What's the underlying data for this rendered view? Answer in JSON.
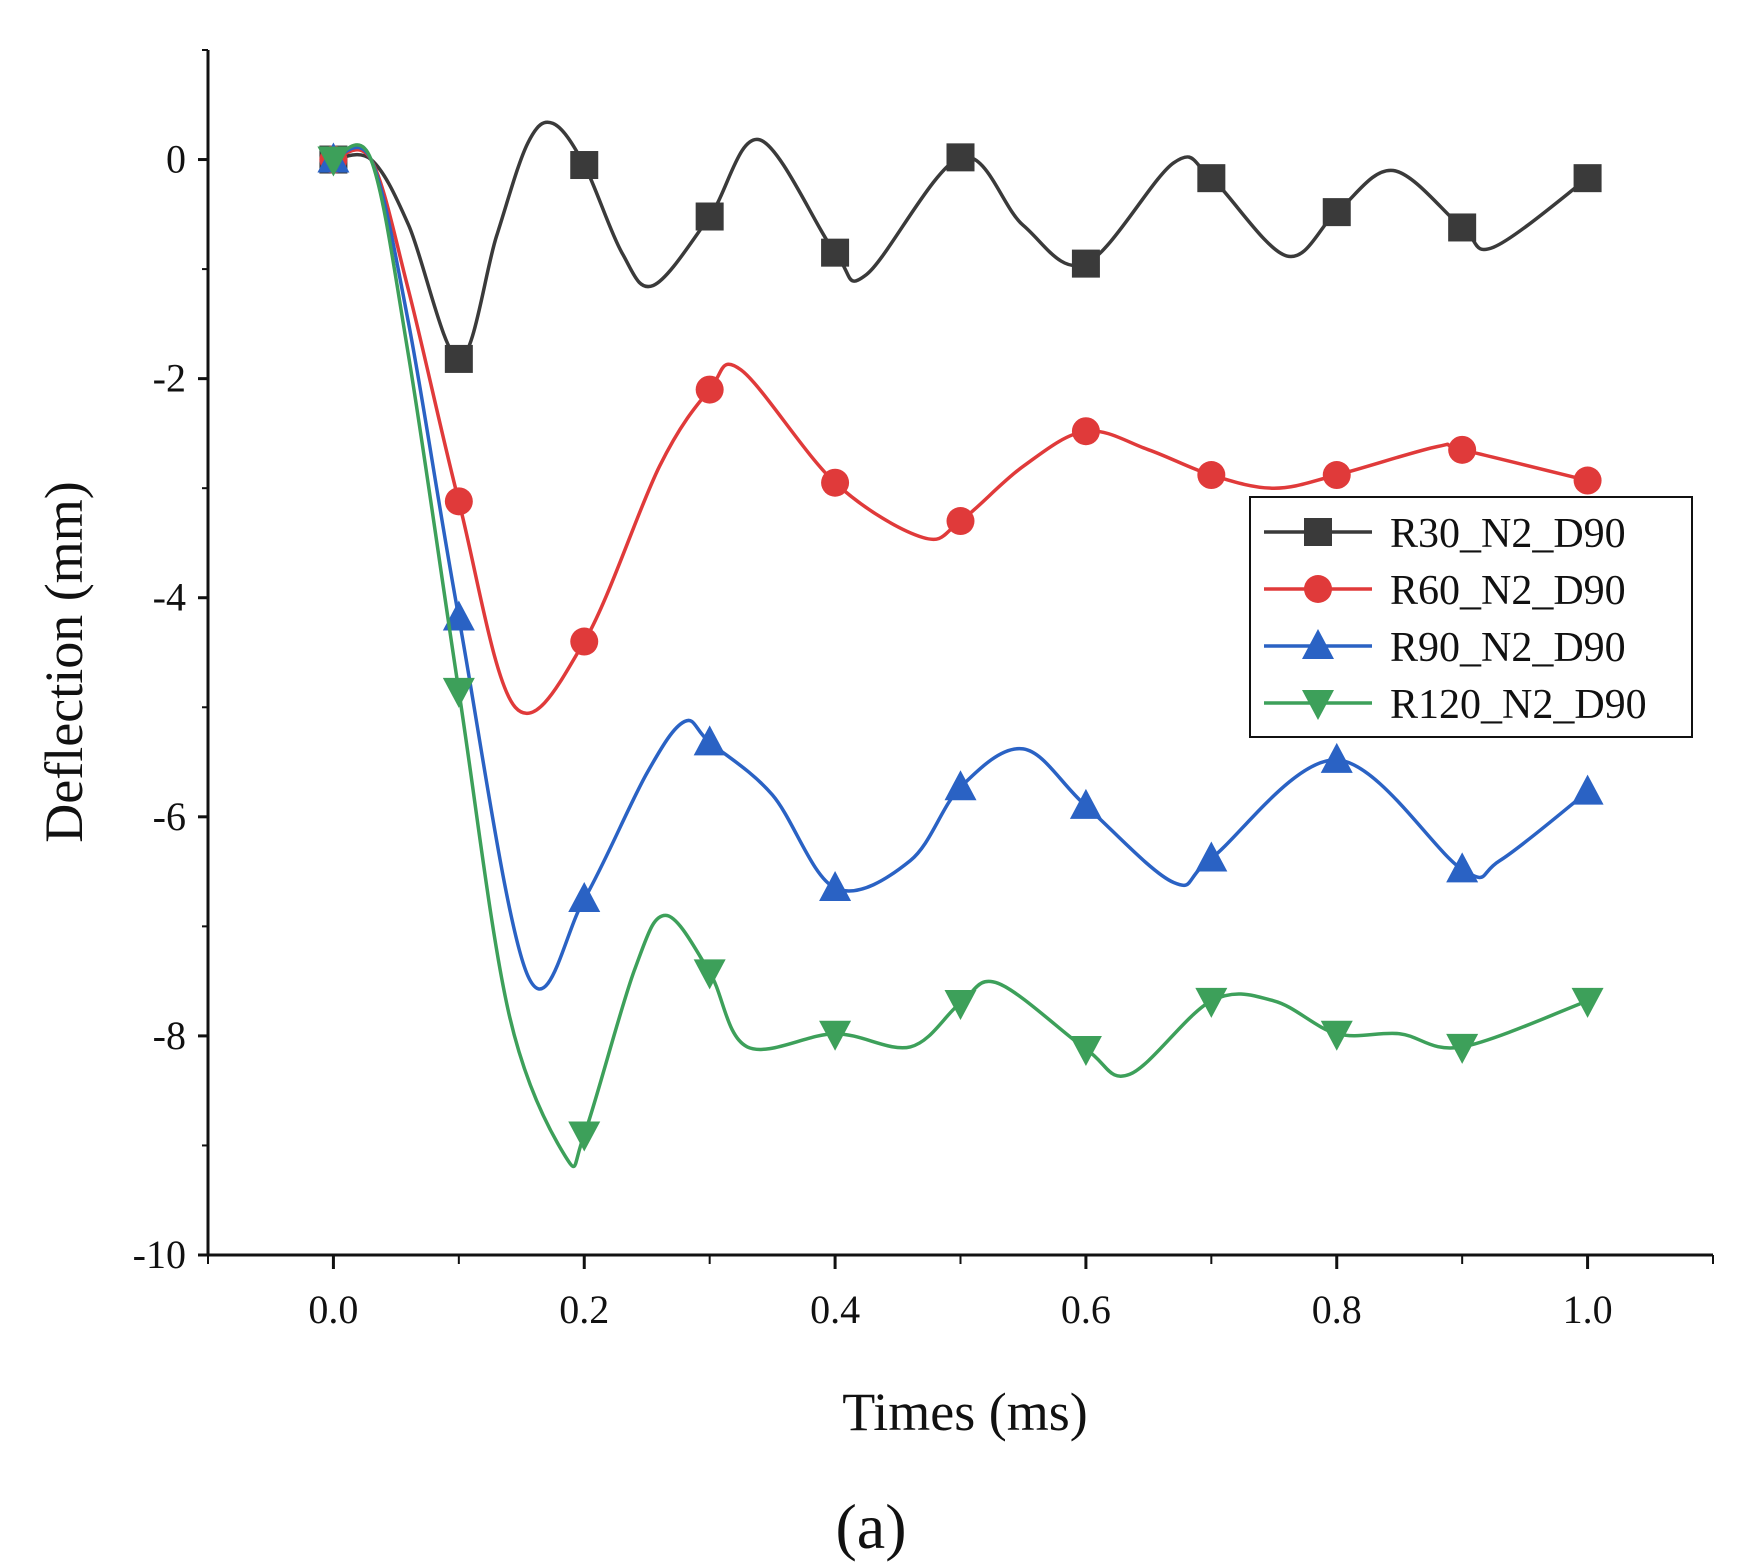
{
  "chart_data": {
    "type": "line",
    "title": "",
    "xlabel": "Times (ms)",
    "ylabel": "Deflection (mm)",
    "xlim": [
      -0.1,
      1.1
    ],
    "ylim": [
      -10,
      1
    ],
    "xticks": [
      0.0,
      0.2,
      0.4,
      0.6,
      0.8,
      1.0
    ],
    "xtick_labels": [
      "0.0",
      "0.2",
      "0.4",
      "0.6",
      "0.8",
      "1.0"
    ],
    "yticks": [
      0,
      -2,
      -4,
      -6,
      -8,
      -10
    ],
    "ytick_labels": [
      "0",
      "-2",
      "-4",
      "-6",
      "-8",
      "-10"
    ],
    "grid": false,
    "legend_position": "right",
    "panel_label": "(a)",
    "series": [
      {
        "name": "R30_N2_D90",
        "color": "#3a3a3a",
        "marker": "square",
        "x": [
          0.0,
          0.1,
          0.2,
          0.3,
          0.4,
          0.5,
          0.6,
          0.7,
          0.8,
          0.9,
          1.0
        ],
        "values": [
          0.0,
          -1.82,
          -0.05,
          -0.52,
          -0.85,
          0.02,
          -0.95,
          -0.17,
          -0.48,
          -0.62,
          -0.17
        ],
        "curve": [
          [
            0,
            0
          ],
          [
            0.03,
            0
          ],
          [
            0.06,
            -0.6
          ],
          [
            0.1,
            -1.82
          ],
          [
            0.13,
            -0.7
          ],
          [
            0.155,
            0.15
          ],
          [
            0.175,
            0.33
          ],
          [
            0.2,
            -0.05
          ],
          [
            0.23,
            -0.85
          ],
          [
            0.255,
            -1.15
          ],
          [
            0.3,
            -0.52
          ],
          [
            0.34,
            0.18
          ],
          [
            0.4,
            -0.85
          ],
          [
            0.425,
            -1.05
          ],
          [
            0.5,
            0.02
          ],
          [
            0.55,
            -0.6
          ],
          [
            0.6,
            -0.95
          ],
          [
            0.67,
            -0.03
          ],
          [
            0.7,
            -0.17
          ],
          [
            0.76,
            -0.88
          ],
          [
            0.8,
            -0.48
          ],
          [
            0.845,
            -0.1
          ],
          [
            0.9,
            -0.62
          ],
          [
            0.925,
            -0.8
          ],
          [
            1.0,
            -0.17
          ]
        ]
      },
      {
        "name": "R60_N2_D90",
        "color": "#e03a3a",
        "marker": "circle",
        "x": [
          0.0,
          0.1,
          0.2,
          0.3,
          0.4,
          0.5,
          0.6,
          0.7,
          0.8,
          0.9,
          1.0
        ],
        "values": [
          0.0,
          -3.12,
          -4.4,
          -2.1,
          -2.95,
          -3.3,
          -2.48,
          -2.88,
          -2.88,
          -2.65,
          -2.93
        ],
        "curve": [
          [
            0,
            0
          ],
          [
            0.03,
            0
          ],
          [
            0.06,
            -1.2
          ],
          [
            0.1,
            -3.12
          ],
          [
            0.145,
            -5.0
          ],
          [
            0.2,
            -4.4
          ],
          [
            0.26,
            -2.8
          ],
          [
            0.3,
            -2.1
          ],
          [
            0.325,
            -1.92
          ],
          [
            0.4,
            -2.95
          ],
          [
            0.47,
            -3.45
          ],
          [
            0.5,
            -3.3
          ],
          [
            0.55,
            -2.8
          ],
          [
            0.6,
            -2.48
          ],
          [
            0.65,
            -2.65
          ],
          [
            0.7,
            -2.88
          ],
          [
            0.75,
            -3.0
          ],
          [
            0.8,
            -2.88
          ],
          [
            0.88,
            -2.62
          ],
          [
            0.9,
            -2.65
          ],
          [
            1.0,
            -2.93
          ]
        ]
      },
      {
        "name": "R90_N2_D90",
        "color": "#2a62c4",
        "marker": "triangle-up",
        "x": [
          0.0,
          0.1,
          0.2,
          0.3,
          0.4,
          0.5,
          0.6,
          0.7,
          0.8,
          0.9,
          1.0
        ],
        "values": [
          0.0,
          -4.18,
          -6.75,
          -5.32,
          -6.65,
          -5.73,
          -5.9,
          -6.38,
          -5.48,
          -6.48,
          -5.77
        ],
        "curve": [
          [
            0,
            0
          ],
          [
            0.03,
            0
          ],
          [
            0.06,
            -1.5
          ],
          [
            0.1,
            -4.18
          ],
          [
            0.155,
            -7.45
          ],
          [
            0.2,
            -6.75
          ],
          [
            0.25,
            -5.6
          ],
          [
            0.28,
            -5.13
          ],
          [
            0.3,
            -5.32
          ],
          [
            0.35,
            -5.8
          ],
          [
            0.4,
            -6.65
          ],
          [
            0.46,
            -6.4
          ],
          [
            0.5,
            -5.73
          ],
          [
            0.55,
            -5.38
          ],
          [
            0.6,
            -5.9
          ],
          [
            0.67,
            -6.6
          ],
          [
            0.7,
            -6.38
          ],
          [
            0.8,
            -5.48
          ],
          [
            0.9,
            -6.48
          ],
          [
            0.93,
            -6.4
          ],
          [
            1.0,
            -5.77
          ]
        ]
      },
      {
        "name": "R120_N2_D90",
        "color": "#3da05a",
        "marker": "triangle-down",
        "x": [
          0.0,
          0.1,
          0.2,
          0.3,
          0.4,
          0.5,
          0.6,
          0.7,
          0.8,
          0.9,
          1.0
        ],
        "values": [
          0.0,
          -4.85,
          -8.9,
          -7.42,
          -7.98,
          -7.7,
          -8.12,
          -7.68,
          -7.98,
          -8.1,
          -7.68
        ],
        "curve": [
          [
            0,
            0
          ],
          [
            0.03,
            0
          ],
          [
            0.06,
            -1.8
          ],
          [
            0.1,
            -4.85
          ],
          [
            0.14,
            -7.8
          ],
          [
            0.185,
            -9.1
          ],
          [
            0.2,
            -8.9
          ],
          [
            0.24,
            -7.4
          ],
          [
            0.265,
            -6.9
          ],
          [
            0.3,
            -7.42
          ],
          [
            0.33,
            -8.1
          ],
          [
            0.4,
            -7.98
          ],
          [
            0.46,
            -8.1
          ],
          [
            0.5,
            -7.7
          ],
          [
            0.53,
            -7.52
          ],
          [
            0.6,
            -8.12
          ],
          [
            0.635,
            -8.35
          ],
          [
            0.7,
            -7.68
          ],
          [
            0.75,
            -7.68
          ],
          [
            0.8,
            -7.98
          ],
          [
            0.85,
            -7.98
          ],
          [
            0.9,
            -8.1
          ],
          [
            1.0,
            -7.68
          ]
        ]
      }
    ]
  }
}
